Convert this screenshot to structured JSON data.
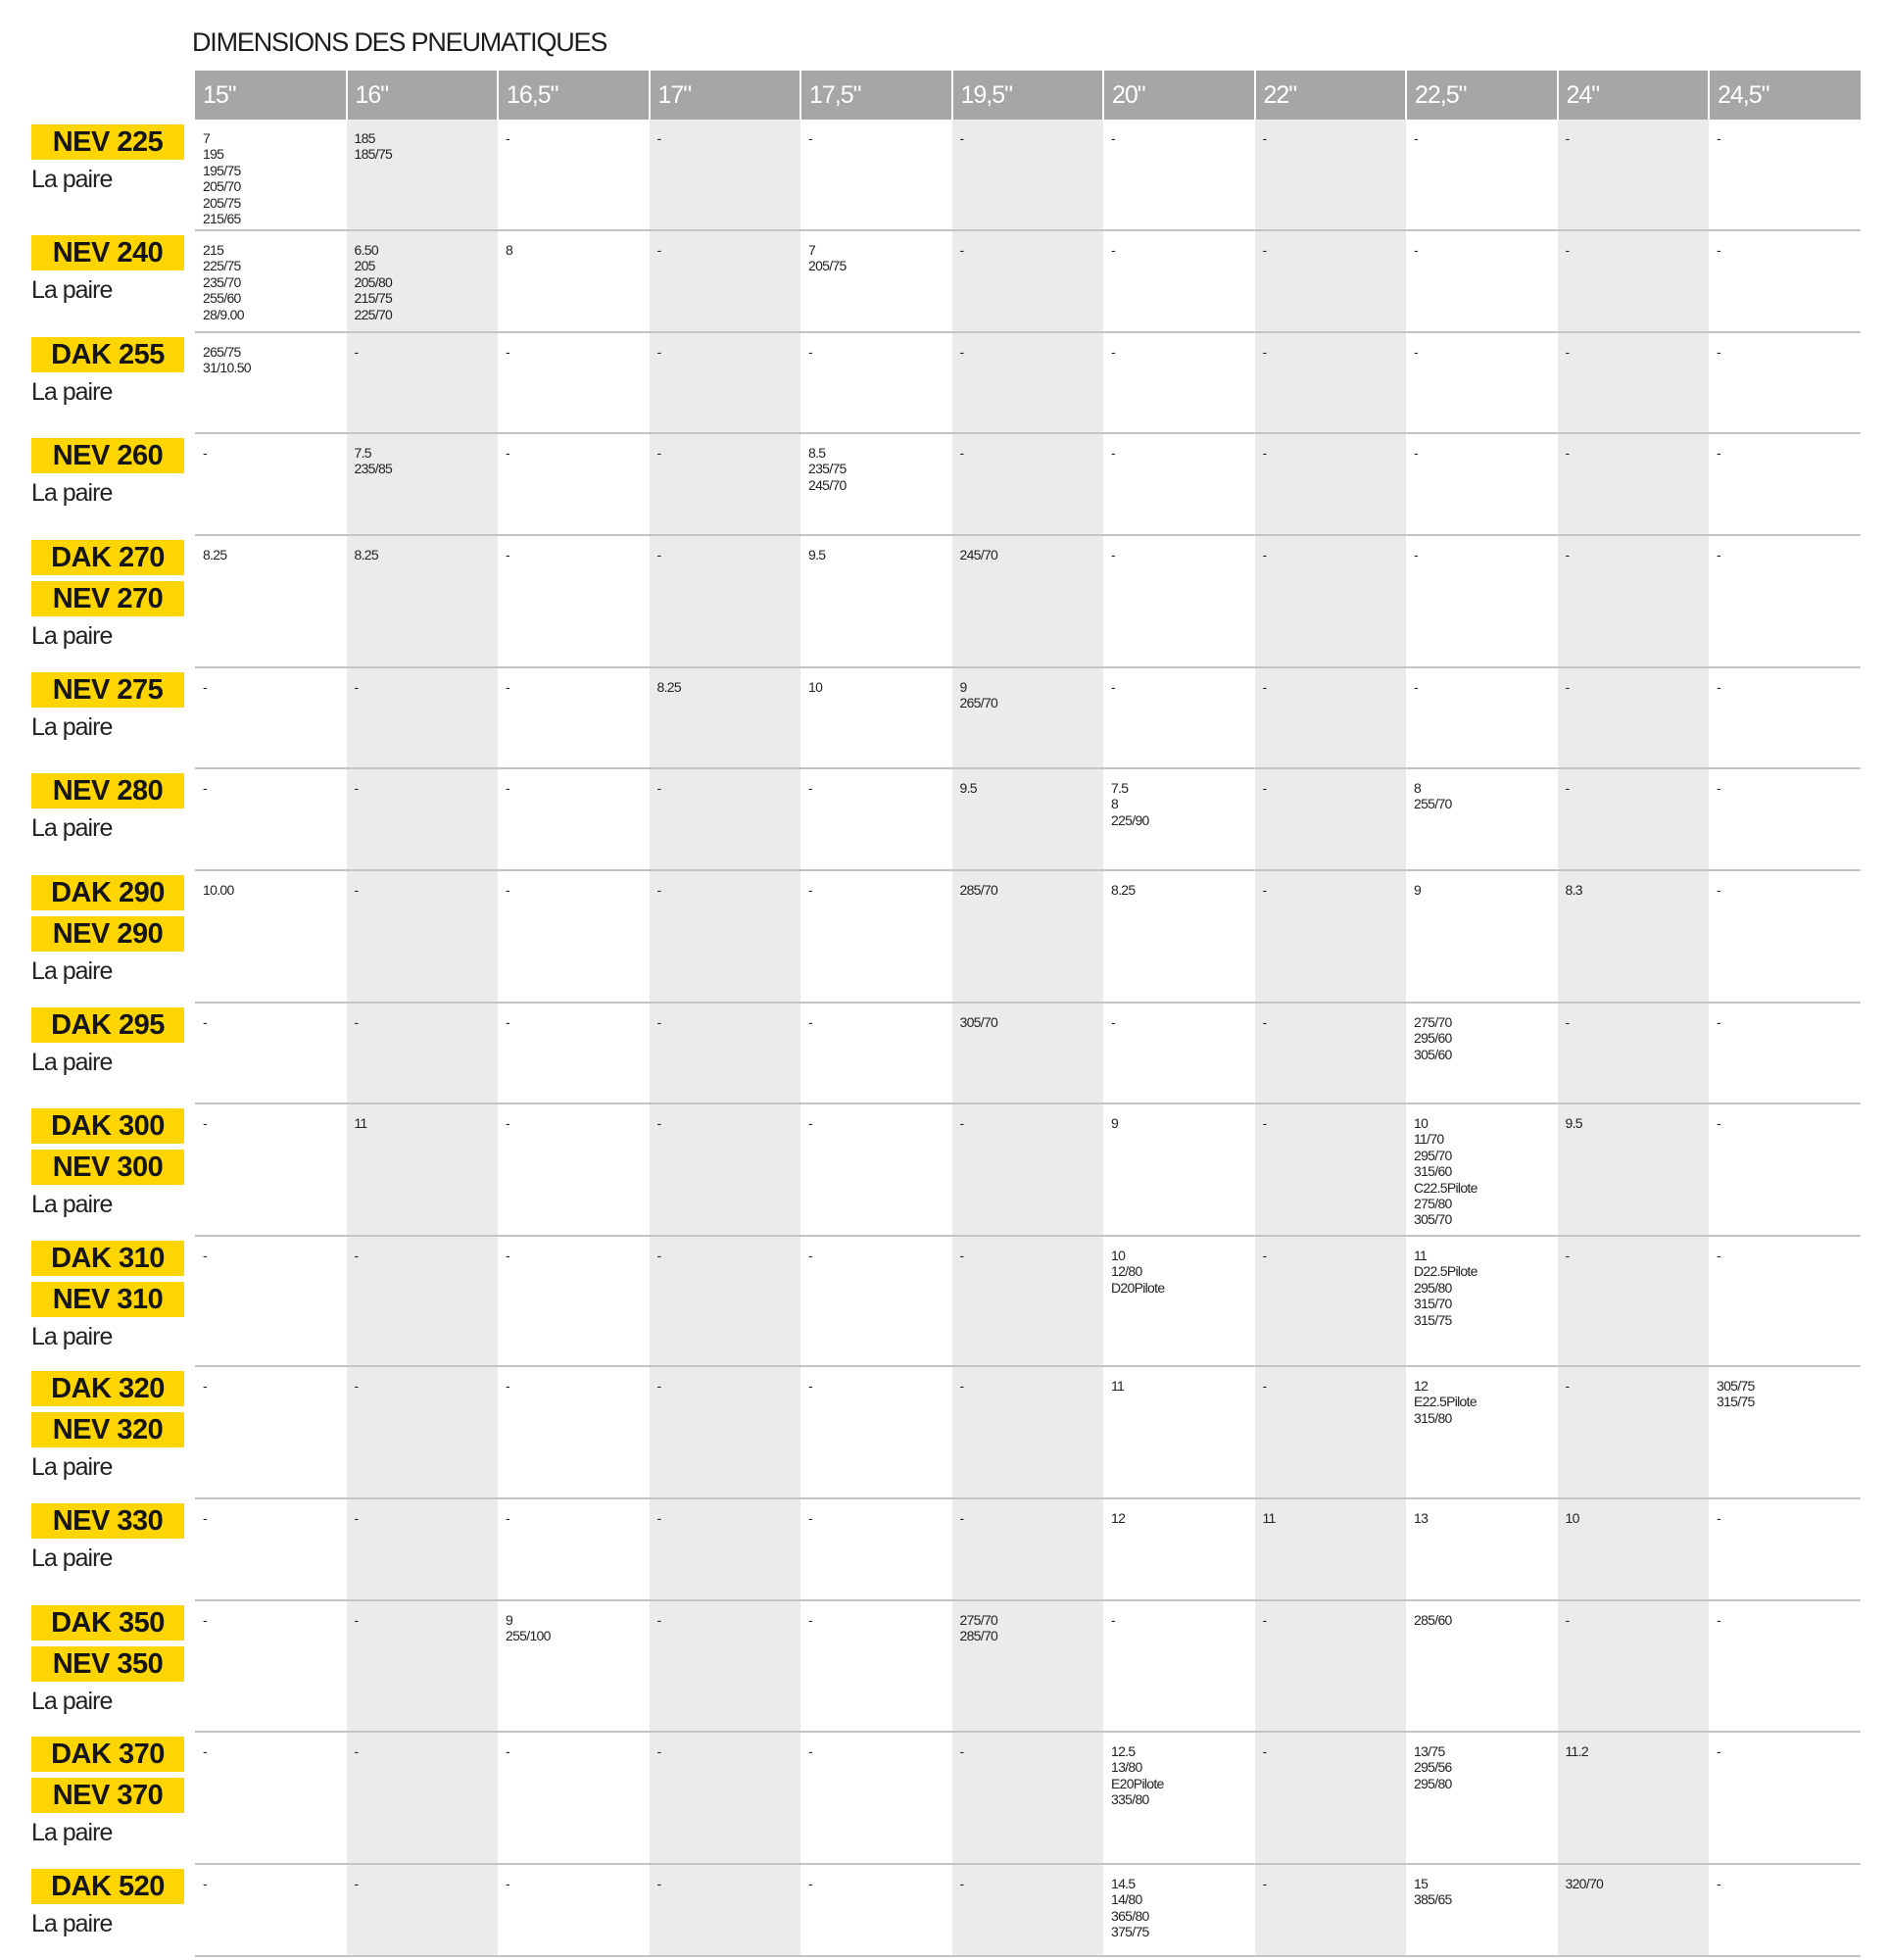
{
  "title": "DIMENSIONS DES PNEUMATIQUES",
  "colors": {
    "header_bg": "#a6a6a6",
    "badge_bg": "#ffd500",
    "alt_column_bg": "#ebebeb"
  },
  "columns": [
    "15\"",
    "16\"",
    "16,5\"",
    "17\"",
    "17,5\"",
    "19,5\"",
    "20\"",
    "22\"",
    "22,5\"",
    "24\"",
    "24,5\""
  ],
  "rows": [
    {
      "models": [
        "NEV 225"
      ],
      "sub": "La paire",
      "cells": [
        [
          "7",
          "195",
          "195/75",
          "205/70",
          "205/75",
          "215/65"
        ],
        [
          "185",
          "185/75"
        ],
        [
          "-"
        ],
        [
          "-"
        ],
        [
          "-"
        ],
        [
          "-"
        ],
        [
          "-"
        ],
        [
          "-"
        ],
        [
          "-"
        ],
        [
          "-"
        ],
        [
          "-"
        ]
      ]
    },
    {
      "models": [
        "NEV 240"
      ],
      "sub": "La paire",
      "cells": [
        [
          "215",
          "225/75",
          "235/70",
          "255/60",
          "28/9.00"
        ],
        [
          "6.50",
          "205",
          "205/80",
          "215/75",
          "225/70"
        ],
        [
          "8"
        ],
        [
          "-"
        ],
        [
          "7",
          "205/75"
        ],
        [
          "-"
        ],
        [
          "-"
        ],
        [
          "-"
        ],
        [
          "-"
        ],
        [
          "-"
        ],
        [
          "-"
        ]
      ]
    },
    {
      "models": [
        "DAK 255"
      ],
      "sub": "La paire",
      "cells": [
        [
          "265/75",
          "31/10.50"
        ],
        [
          "-"
        ],
        [
          "-"
        ],
        [
          "-"
        ],
        [
          "-"
        ],
        [
          "-"
        ],
        [
          "-"
        ],
        [
          "-"
        ],
        [
          "-"
        ],
        [
          "-"
        ],
        [
          "-"
        ]
      ]
    },
    {
      "models": [
        "NEV 260"
      ],
      "sub": "La paire",
      "cells": [
        [
          "-"
        ],
        [
          "7.5",
          "235/85"
        ],
        [
          "-"
        ],
        [
          "-"
        ],
        [
          "8.5",
          "235/75",
          "245/70"
        ],
        [
          "-"
        ],
        [
          "-"
        ],
        [
          "-"
        ],
        [
          "-"
        ],
        [
          "-"
        ],
        [
          "-"
        ]
      ]
    },
    {
      "models": [
        "DAK 270",
        "NEV 270"
      ],
      "sub": "La paire",
      "cells": [
        [
          "8.25"
        ],
        [
          "8.25"
        ],
        [
          "-"
        ],
        [
          "-"
        ],
        [
          "9.5"
        ],
        [
          "245/70"
        ],
        [
          "-"
        ],
        [
          "-"
        ],
        [
          "-"
        ],
        [
          "-"
        ],
        [
          "-"
        ]
      ]
    },
    {
      "models": [
        "NEV 275"
      ],
      "sub": "La paire",
      "cells": [
        [
          "-"
        ],
        [
          "-"
        ],
        [
          "-"
        ],
        [
          "8.25"
        ],
        [
          "10"
        ],
        [
          "9",
          "265/70"
        ],
        [
          "-"
        ],
        [
          "-"
        ],
        [
          "-"
        ],
        [
          "-"
        ],
        [
          "-"
        ]
      ]
    },
    {
      "models": [
        "NEV 280"
      ],
      "sub": "La paire",
      "cells": [
        [
          "-"
        ],
        [
          "-"
        ],
        [
          "-"
        ],
        [
          "-"
        ],
        [
          "-"
        ],
        [
          "9.5"
        ],
        [
          "7.5",
          "8",
          "225/90"
        ],
        [
          "-"
        ],
        [
          "8",
          "255/70"
        ],
        [
          "-"
        ],
        [
          "-"
        ]
      ]
    },
    {
      "models": [
        "DAK 290",
        "NEV 290"
      ],
      "sub": "La paire",
      "cells": [
        [
          "10.00"
        ],
        [
          "-"
        ],
        [
          "-"
        ],
        [
          "-"
        ],
        [
          "-"
        ],
        [
          "285/70"
        ],
        [
          "8.25"
        ],
        [
          "-"
        ],
        [
          "9"
        ],
        [
          "8.3"
        ],
        [
          "-"
        ]
      ]
    },
    {
      "models": [
        "DAK 295"
      ],
      "sub": "La paire",
      "cells": [
        [
          "-"
        ],
        [
          "-"
        ],
        [
          "-"
        ],
        [
          "-"
        ],
        [
          "-"
        ],
        [
          "305/70"
        ],
        [
          "-"
        ],
        [
          "-"
        ],
        [
          "275/70",
          "295/60",
          "305/60"
        ],
        [
          "-"
        ],
        [
          "-"
        ]
      ]
    },
    {
      "models": [
        "DAK 300",
        "NEV 300"
      ],
      "sub": "La paire",
      "cells": [
        [
          "-"
        ],
        [
          "11"
        ],
        [
          "-"
        ],
        [
          "-"
        ],
        [
          "-"
        ],
        [
          "-"
        ],
        [
          "9"
        ],
        [
          "-"
        ],
        [
          "10",
          "11/70",
          "295/70",
          "315/60",
          "C22.5Pilote",
          "275/80",
          "305/70"
        ],
        [
          "9.5"
        ],
        [
          "-"
        ]
      ]
    },
    {
      "models": [
        "DAK 310",
        "NEV 310"
      ],
      "sub": "La paire",
      "cells": [
        [
          "-"
        ],
        [
          "-"
        ],
        [
          "-"
        ],
        [
          "-"
        ],
        [
          "-"
        ],
        [
          "-"
        ],
        [
          "10",
          "12/80",
          "D20Pilote"
        ],
        [
          "-"
        ],
        [
          "11",
          "D22.5Pilote",
          "295/80",
          "315/70",
          "315/75"
        ],
        [
          "-"
        ],
        [
          "-"
        ]
      ]
    },
    {
      "models": [
        "DAK 320",
        "NEV 320"
      ],
      "sub": "La paire",
      "cells": [
        [
          "-"
        ],
        [
          "-"
        ],
        [
          "-"
        ],
        [
          "-"
        ],
        [
          "-"
        ],
        [
          "-"
        ],
        [
          "11"
        ],
        [
          "-"
        ],
        [
          "12",
          "E22.5Pilote",
          "315/80"
        ],
        [
          "-"
        ],
        [
          "305/75",
          "315/75"
        ]
      ]
    },
    {
      "models": [
        "NEV 330"
      ],
      "sub": "La paire",
      "cells": [
        [
          "-"
        ],
        [
          "-"
        ],
        [
          "-"
        ],
        [
          "-"
        ],
        [
          "-"
        ],
        [
          "-"
        ],
        [
          "12"
        ],
        [
          "11"
        ],
        [
          "13"
        ],
        [
          "10"
        ],
        [
          "-"
        ]
      ]
    },
    {
      "models": [
        "DAK 350",
        "NEV 350"
      ],
      "sub": "La paire",
      "cells": [
        [
          "-"
        ],
        [
          "-"
        ],
        [
          "9",
          "255/100"
        ],
        [
          "-"
        ],
        [
          "-"
        ],
        [
          "275/70",
          "285/70"
        ],
        [
          "-"
        ],
        [
          "-"
        ],
        [
          "285/60"
        ],
        [
          "-"
        ],
        [
          "-"
        ]
      ]
    },
    {
      "models": [
        "DAK 370",
        "NEV 370"
      ],
      "sub": "La paire",
      "cells": [
        [
          "-"
        ],
        [
          "-"
        ],
        [
          "-"
        ],
        [
          "-"
        ],
        [
          "-"
        ],
        [
          "-"
        ],
        [
          "12.5",
          "13/80",
          "E20Pilote",
          "335/80"
        ],
        [
          "-"
        ],
        [
          "13/75",
          "295/56",
          "295/80"
        ],
        [
          "11.2"
        ],
        [
          "-"
        ]
      ]
    },
    {
      "models": [
        "DAK 520"
      ],
      "sub": "La paire",
      "cells": [
        [
          "-"
        ],
        [
          "-"
        ],
        [
          "-"
        ],
        [
          "-"
        ],
        [
          "-"
        ],
        [
          "-"
        ],
        [
          "14.5",
          "14/80",
          "365/80",
          "375/75"
        ],
        [
          "-"
        ],
        [
          "15",
          "385/65"
        ],
        [
          "320/70"
        ],
        [
          "-"
        ]
      ]
    }
  ]
}
